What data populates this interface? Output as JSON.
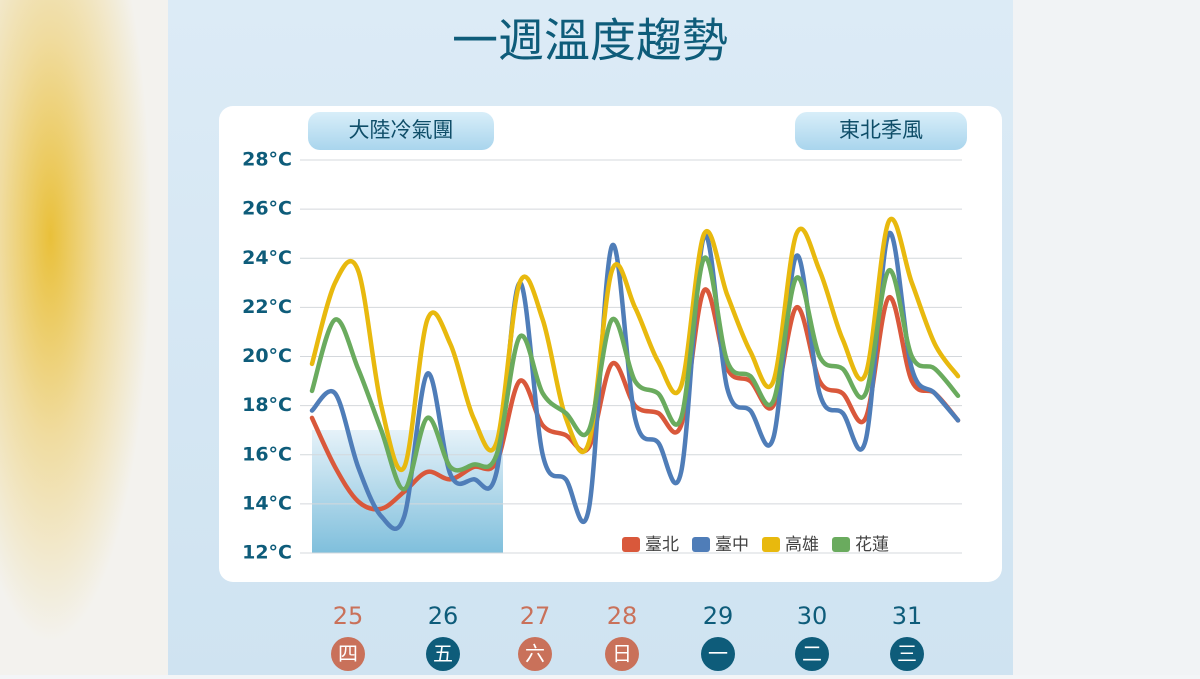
{
  "chart_data": {
    "type": "line",
    "title": "一週溫度趨勢",
    "annotations": [
      "大陸冷氣團",
      "東北季風"
    ],
    "categories": [
      null,
      null,
      null,
      null,
      null,
      null,
      null,
      null,
      null,
      null,
      null,
      null,
      null,
      null,
      null,
      null,
      null,
      null,
      null,
      null,
      null,
      null,
      null,
      null,
      null,
      null,
      null,
      null,
      null
    ],
    "series": [
      {
        "name": "臺北",
        "color": "#d9583b",
        "values": [
          17.5,
          15.5,
          14.1,
          13.8,
          14.5,
          15.3,
          15.0,
          15.5,
          15.7,
          19.0,
          17.2,
          16.8,
          16.3,
          19.7,
          18.0,
          17.7,
          17.2,
          22.7,
          19.5,
          19.0,
          18.0,
          22.0,
          19.0,
          18.5,
          17.5,
          22.4,
          19.0,
          18.5,
          17.4
        ]
      },
      {
        "name": "臺中",
        "color": "#4f7db8",
        "values": [
          17.8,
          18.5,
          15.5,
          13.5,
          13.5,
          19.3,
          15.2,
          15.0,
          15.3,
          23.0,
          16.0,
          15.0,
          13.8,
          24.5,
          17.5,
          16.5,
          15.3,
          24.9,
          18.7,
          17.8,
          16.7,
          24.1,
          18.5,
          17.7,
          16.6,
          25.0,
          19.5,
          18.5,
          17.4
        ]
      },
      {
        "name": "高雄",
        "color": "#e8b90e",
        "values": [
          19.7,
          23.0,
          23.5,
          18.0,
          15.5,
          21.5,
          20.5,
          17.5,
          16.5,
          23.0,
          21.5,
          17.5,
          16.5,
          23.5,
          22.0,
          19.8,
          18.8,
          25.0,
          22.5,
          20.2,
          19.0,
          25.0,
          23.5,
          20.7,
          19.3,
          25.5,
          23.0,
          20.5,
          19.2
        ]
      },
      {
        "name": "花蓮",
        "color": "#6aab5e",
        "values": [
          18.6,
          21.5,
          19.5,
          17.0,
          14.6,
          17.5,
          15.5,
          15.6,
          16.0,
          20.8,
          18.5,
          17.7,
          17.0,
          21.5,
          19.0,
          18.5,
          17.5,
          24.0,
          19.8,
          19.2,
          18.2,
          23.2,
          20.0,
          19.5,
          18.5,
          23.5,
          20.0,
          19.5,
          18.4
        ]
      }
    ],
    "ylim": [
      12,
      28
    ],
    "yticks": [
      {
        "value": 12,
        "label": "12°C"
      },
      {
        "value": 14,
        "label": "14°C"
      },
      {
        "value": 16,
        "label": "16°C"
      },
      {
        "value": 18,
        "label": "18°C"
      },
      {
        "value": 20,
        "label": "20°C"
      },
      {
        "value": 22,
        "label": "22°C"
      },
      {
        "value": 24,
        "label": "24°C"
      },
      {
        "value": 26,
        "label": "26°C"
      },
      {
        "value": 28,
        "label": "28°C"
      }
    ],
    "grid": true,
    "days": [
      {
        "date": "25",
        "weekday": "四",
        "color": "#c9715a"
      },
      {
        "date": "26",
        "weekday": "五",
        "color": "#0e5c7a"
      },
      {
        "date": "27",
        "weekday": "六",
        "color": "#c9715a"
      },
      {
        "date": "28",
        "weekday": "日",
        "color": "#c9715a"
      },
      {
        "date": "29",
        "weekday": "一",
        "color": "#0e5c7a"
      },
      {
        "date": "30",
        "weekday": "二",
        "color": "#0e5c7a"
      },
      {
        "date": "31",
        "weekday": "三",
        "color": "#0e5c7a"
      }
    ]
  }
}
